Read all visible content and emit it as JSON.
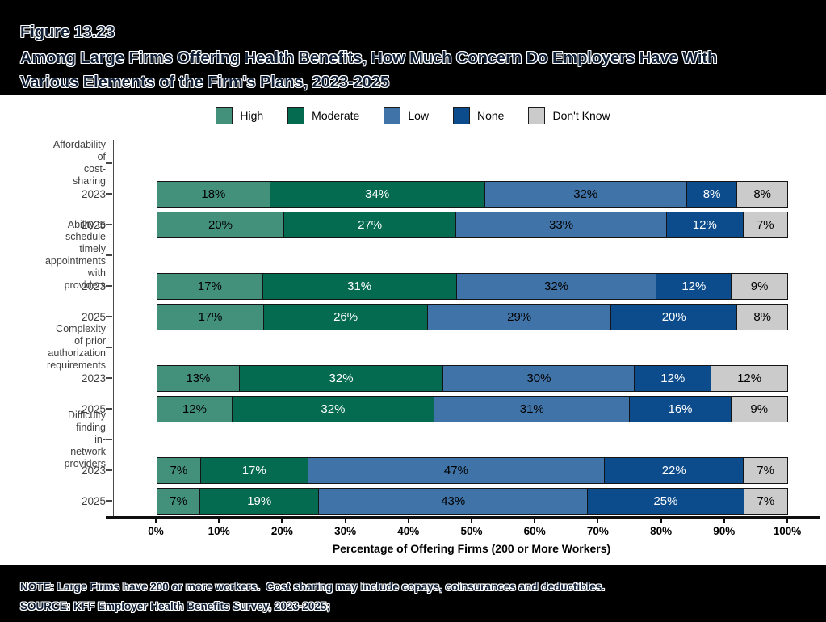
{
  "header": {
    "figure_label": "Figure 13.23",
    "title": "Among Large Firms Offering Health Benefits, How Much Concern Do Employers Have With\nVarious Elements of the Firm's Plans, 2023-2025"
  },
  "legend": [
    {
      "label": "High",
      "color": "#44917B"
    },
    {
      "label": "Moderate",
      "color": "#056B50"
    },
    {
      "label": "Low",
      "color": "#4074A8"
    },
    {
      "label": "None",
      "color": "#0C4C8C"
    },
    {
      "label": "Don't Know",
      "color": "#CBCBCB"
    }
  ],
  "chart_data": {
    "type": "bar",
    "stacked": true,
    "orientation": "horizontal",
    "series_names": [
      "High",
      "Moderate",
      "Low",
      "None",
      "Don't Know"
    ],
    "colors": [
      "#44917B",
      "#056B50",
      "#4074A8",
      "#0C4C8C",
      "#CBCBCB"
    ],
    "label_text_colors": [
      "#000000",
      "#ffffff",
      "#000000",
      "#ffffff",
      "#000000"
    ],
    "groups": [
      {
        "category": "Affordability of\ncost-sharing",
        "rows": [
          {
            "year": "2023",
            "values": [
              18,
              34,
              32,
              8,
              8
            ]
          },
          {
            "year": "2025",
            "values": [
              20,
              27,
              33,
              12,
              7
            ]
          }
        ]
      },
      {
        "category": "Ability to schedule\ntimely appointments\nwith providers",
        "rows": [
          {
            "year": "2023",
            "values": [
              17,
              31,
              32,
              12,
              9
            ]
          },
          {
            "year": "2025",
            "values": [
              17,
              26,
              29,
              20,
              8
            ]
          }
        ]
      },
      {
        "category": "Complexity of prior\nauthorization\nrequirements",
        "rows": [
          {
            "year": "2023",
            "values": [
              13,
              32,
              30,
              12,
              12
            ]
          },
          {
            "year": "2025",
            "values": [
              12,
              32,
              31,
              16,
              9
            ]
          }
        ]
      },
      {
        "category": "Difficulty finding\nin-network\nproviders",
        "rows": [
          {
            "year": "2023",
            "values": [
              7,
              17,
              47,
              22,
              7
            ]
          },
          {
            "year": "2025",
            "values": [
              7,
              19,
              43,
              25,
              7
            ]
          }
        ]
      }
    ],
    "x_ticks": [
      "0%",
      "10%",
      "20%",
      "30%",
      "40%",
      "50%",
      "60%",
      "70%",
      "80%",
      "90%",
      "100%"
    ],
    "xlim": [
      0,
      100
    ],
    "xlabel": "Percentage of Offering Firms (200 or More Workers)",
    "value_suffix": "%",
    "legend_position": "top"
  },
  "notes": {
    "note": "NOTE: Large Firms have 200 or more workers.  Cost sharing may include copays, coinsurances and deductibles.",
    "source": "SOURCE: KFF Employer Health Benefits Survey, 2023-2025;"
  }
}
